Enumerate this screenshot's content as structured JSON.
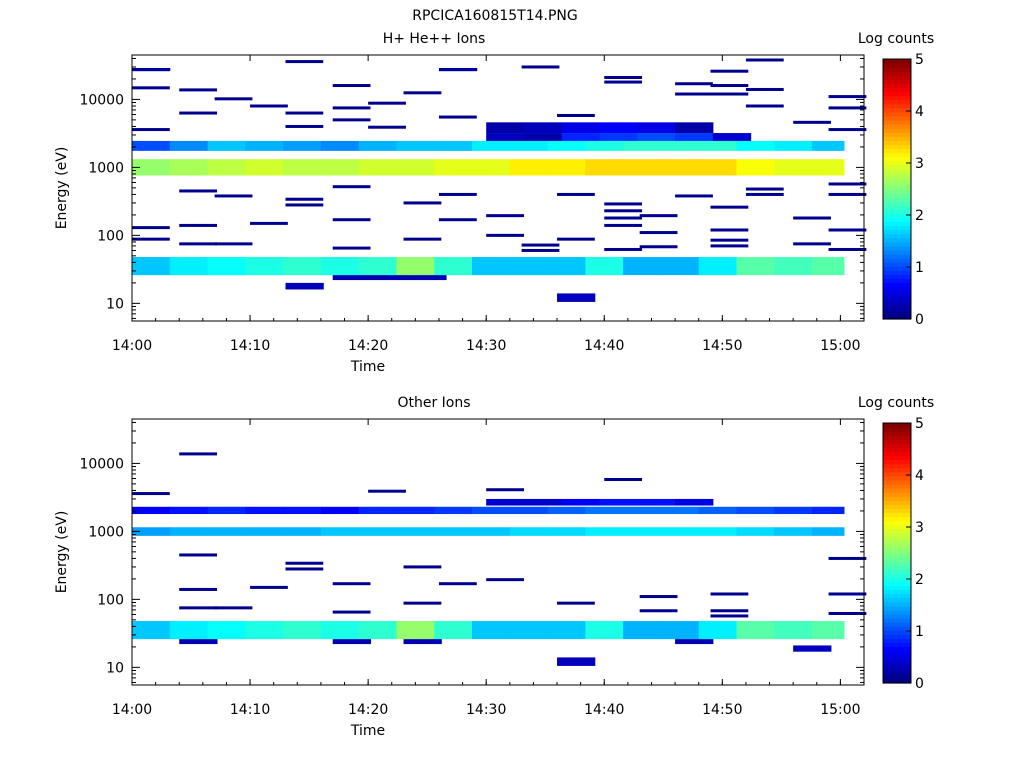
{
  "figure_title": "RPCICA160815T14.PNG",
  "chart_data": [
    {
      "type": "heatmap",
      "title": "H+ He++ Ions",
      "xlabel": "Time",
      "ylabel": "Energy (eV)",
      "x_tick_labels": [
        "14:00",
        "14:10",
        "14:20",
        "14:30",
        "14:40",
        "14:50",
        "15:00"
      ],
      "x_range": [
        "14:00",
        "15:02"
      ],
      "y_tick_labels": [
        "10",
        "100",
        "1000",
        "10000"
      ],
      "y_scale": "log",
      "y_range": [
        5.5,
        45000
      ],
      "colorbar": {
        "label": "Log counts",
        "ticks": [
          "0",
          "1",
          "2",
          "3",
          "4",
          "5"
        ],
        "range": [
          0,
          5
        ],
        "colormap": "jet"
      },
      "time_bin_minutes": 3.2,
      "rows": [
        {
          "energy_range": [
            26,
            48
          ],
          "start": "14:00",
          "values": [
            1.6,
            1.8,
            1.9,
            2.0,
            2.1,
            2.0,
            2.1,
            2.6,
            2.1,
            1.6,
            1.6,
            1.6,
            2.0,
            1.5,
            1.5,
            1.8,
            2.3,
            2.2,
            2.3
          ]
        },
        {
          "energy_range": [
            760,
            1320
          ],
          "start": "14:00",
          "values": [
            2.6,
            2.7,
            2.8,
            2.9,
            2.8,
            2.8,
            2.9,
            2.9,
            3.0,
            3.0,
            3.2,
            3.2,
            3.3,
            3.3,
            3.3,
            3.3,
            3.1,
            3.0,
            3.0
          ]
        },
        {
          "energy_range": [
            1750,
            2450
          ],
          "start": "14:00",
          "values": [
            1.0,
            1.3,
            1.6,
            1.5,
            1.4,
            1.3,
            1.5,
            1.6,
            1.6,
            1.8,
            1.8,
            1.9,
            2.0,
            2.1,
            2.1,
            2.1,
            1.9,
            1.8,
            1.6
          ]
        },
        {
          "energy_range": [
            2450,
            3200
          ],
          "start": "14:30",
          "values": [
            0.3,
            0.2,
            0.8,
            0.9,
            1.0,
            0.9,
            0.4
          ]
        },
        {
          "energy_range": [
            3200,
            4600
          ],
          "start": "14:30",
          "values": [
            0.2,
            0.3,
            0.5,
            0.6,
            0.5,
            0.2
          ]
        },
        {
          "energy_range": [
            16,
            20
          ],
          "start": "14:13",
          "values": [
            0.3
          ]
        },
        {
          "energy_range": [
            22,
            26
          ],
          "start": "14:17",
          "values": [
            0.25,
            0.25,
            0.25
          ]
        },
        {
          "energy_range": [
            10.5,
            14
          ],
          "start": "14:36",
          "values": [
            0.3
          ]
        },
        {
          "energy_range": [
            26000,
            29000
          ],
          "start": "14:00",
          "values": [
            0.15
          ]
        },
        {
          "energy_range": [
            26000,
            29000
          ],
          "start": "14:26",
          "values": [
            0.15
          ]
        }
      ],
      "lines": [
        {
          "energy": 14800,
          "start": "14:00"
        },
        {
          "energy": 3600,
          "start": "14:00"
        },
        {
          "energy": 130,
          "start": "14:00"
        },
        {
          "energy": 88,
          "start": "14:00"
        },
        {
          "energy": 13800,
          "start": "14:04"
        },
        {
          "energy": 6300,
          "start": "14:04"
        },
        {
          "energy": 450,
          "start": "14:04"
        },
        {
          "energy": 140,
          "start": "14:04"
        },
        {
          "energy": 75,
          "start": "14:04"
        },
        {
          "energy": 10200,
          "start": "14:07"
        },
        {
          "energy": 380,
          "start": "14:07"
        },
        {
          "energy": 75,
          "start": "14:07"
        },
        {
          "energy": 8000,
          "start": "14:10"
        },
        {
          "energy": 150,
          "start": "14:10"
        },
        {
          "energy": 36000,
          "start": "14:13"
        },
        {
          "energy": 6300,
          "start": "14:13"
        },
        {
          "energy": 4000,
          "start": "14:13"
        },
        {
          "energy": 340,
          "start": "14:13"
        },
        {
          "energy": 280,
          "start": "14:13"
        },
        {
          "energy": 16000,
          "start": "14:17"
        },
        {
          "energy": 7500,
          "start": "14:17"
        },
        {
          "energy": 5000,
          "start": "14:17"
        },
        {
          "energy": 520,
          "start": "14:17"
        },
        {
          "energy": 170,
          "start": "14:17"
        },
        {
          "energy": 65,
          "start": "14:17"
        },
        {
          "energy": 8800,
          "start": "14:20"
        },
        {
          "energy": 3900,
          "start": "14:20"
        },
        {
          "energy": 12500,
          "start": "14:23"
        },
        {
          "energy": 300,
          "start": "14:23"
        },
        {
          "energy": 88,
          "start": "14:23"
        },
        {
          "energy": 5500,
          "start": "14:26"
        },
        {
          "energy": 400,
          "start": "14:26"
        },
        {
          "energy": 170,
          "start": "14:26"
        },
        {
          "energy": 195,
          "start": "14:30"
        },
        {
          "energy": 100,
          "start": "14:30"
        },
        {
          "energy": 30000,
          "start": "14:33"
        },
        {
          "energy": 72,
          "start": "14:33"
        },
        {
          "energy": 60,
          "start": "14:33"
        },
        {
          "energy": 5800,
          "start": "14:36"
        },
        {
          "energy": 400,
          "start": "14:36"
        },
        {
          "energy": 88,
          "start": "14:36"
        },
        {
          "energy": 21000,
          "start": "14:40"
        },
        {
          "energy": 18000,
          "start": "14:40"
        },
        {
          "energy": 290,
          "start": "14:40"
        },
        {
          "energy": 230,
          "start": "14:40"
        },
        {
          "energy": 180,
          "start": "14:40"
        },
        {
          "energy": 140,
          "start": "14:40"
        },
        {
          "energy": 62,
          "start": "14:40"
        },
        {
          "energy": 195,
          "start": "14:43"
        },
        {
          "energy": 110,
          "start": "14:43"
        },
        {
          "energy": 68,
          "start": "14:43"
        },
        {
          "energy": 17000,
          "start": "14:46"
        },
        {
          "energy": 12000,
          "start": "14:46"
        },
        {
          "energy": 380,
          "start": "14:46"
        },
        {
          "energy": 26000,
          "start": "14:49"
        },
        {
          "energy": 16000,
          "start": "14:49"
        },
        {
          "energy": 12000,
          "start": "14:49"
        },
        {
          "energy": 260,
          "start": "14:49"
        },
        {
          "energy": 120,
          "start": "14:49"
        },
        {
          "energy": 85,
          "start": "14:49"
        },
        {
          "energy": 70,
          "start": "14:49"
        },
        {
          "energy": 38000,
          "start": "14:52"
        },
        {
          "energy": 14000,
          "start": "14:52"
        },
        {
          "energy": 8000,
          "start": "14:52"
        },
        {
          "energy": 480,
          "start": "14:52"
        },
        {
          "energy": 400,
          "start": "14:52"
        },
        {
          "energy": 4600,
          "start": "14:56"
        },
        {
          "energy": 180,
          "start": "14:56"
        },
        {
          "energy": 75,
          "start": "14:56"
        },
        {
          "energy": 11000,
          "start": "14:59"
        },
        {
          "energy": 7500,
          "start": "14:59"
        },
        {
          "energy": 3600,
          "start": "14:59"
        },
        {
          "energy": 570,
          "start": "14:59"
        },
        {
          "energy": 400,
          "start": "14:59"
        },
        {
          "energy": 120,
          "start": "14:59"
        },
        {
          "energy": 62,
          "start": "14:59"
        }
      ]
    },
    {
      "type": "heatmap",
      "title": "Other Ions",
      "xlabel": "Time",
      "ylabel": "Energy (eV)",
      "x_tick_labels": [
        "14:00",
        "14:10",
        "14:20",
        "14:30",
        "14:40",
        "14:50",
        "15:00"
      ],
      "x_range": [
        "14:00",
        "15:02"
      ],
      "y_tick_labels": [
        "10",
        "100",
        "1000",
        "10000"
      ],
      "y_scale": "log",
      "y_range": [
        5.5,
        45000
      ],
      "colorbar": {
        "label": "Log counts",
        "ticks": [
          "0",
          "1",
          "2",
          "3",
          "4",
          "5"
        ],
        "range": [
          0,
          5
        ],
        "colormap": "jet"
      },
      "time_bin_minutes": 3.2,
      "rows": [
        {
          "energy_range": [
            26,
            48
          ],
          "start": "14:00",
          "values": [
            1.6,
            1.8,
            1.9,
            2.0,
            2.1,
            2.0,
            2.1,
            2.6,
            2.1,
            1.6,
            1.6,
            1.6,
            2.0,
            1.5,
            1.5,
            1.8,
            2.3,
            2.2,
            2.3
          ]
        },
        {
          "energy_range": [
            860,
            1150
          ],
          "start": "14:00",
          "values": [
            1.4,
            1.5,
            1.5,
            1.5,
            1.5,
            1.6,
            1.6,
            1.6,
            1.6,
            1.6,
            1.7,
            1.7,
            1.8,
            1.8,
            1.8,
            1.8,
            1.7,
            1.6,
            1.5
          ]
        },
        {
          "energy_range": [
            1800,
            2300
          ],
          "start": "14:00",
          "values": [
            0.6,
            0.7,
            0.8,
            0.7,
            0.7,
            0.6,
            0.8,
            0.8,
            0.9,
            1.0,
            1.0,
            1.1,
            1.2,
            1.2,
            1.2,
            1.1,
            1.0,
            0.9,
            0.8
          ]
        },
        {
          "energy_range": [
            2400,
            3000
          ],
          "start": "14:30",
          "values": [
            0.4,
            0.4,
            0.6,
            0.7,
            0.7,
            0.5
          ]
        },
        {
          "energy_range": [
            22,
            26
          ],
          "start": "14:04",
          "values": [
            0.25
          ]
        },
        {
          "energy_range": [
            22,
            26
          ],
          "start": "14:17",
          "values": [
            0.25
          ]
        },
        {
          "energy_range": [
            22,
            26
          ],
          "start": "14:23",
          "values": [
            0.25
          ]
        },
        {
          "energy_range": [
            22,
            26
          ],
          "start": "14:46",
          "values": [
            0.25
          ]
        },
        {
          "energy_range": [
            17,
            21
          ],
          "start": "14:56",
          "values": [
            0.3
          ]
        },
        {
          "energy_range": [
            10.5,
            14
          ],
          "start": "14:36",
          "values": [
            0.3
          ]
        }
      ],
      "lines": [
        {
          "energy": 3600,
          "start": "14:00"
        },
        {
          "energy": 13800,
          "start": "14:04"
        },
        {
          "energy": 450,
          "start": "14:04"
        },
        {
          "energy": 140,
          "start": "14:04"
        },
        {
          "energy": 75,
          "start": "14:04"
        },
        {
          "energy": 75,
          "start": "14:07"
        },
        {
          "energy": 150,
          "start": "14:10"
        },
        {
          "energy": 340,
          "start": "14:13"
        },
        {
          "energy": 280,
          "start": "14:13"
        },
        {
          "energy": 170,
          "start": "14:17"
        },
        {
          "energy": 65,
          "start": "14:17"
        },
        {
          "energy": 3900,
          "start": "14:20"
        },
        {
          "energy": 300,
          "start": "14:23"
        },
        {
          "energy": 88,
          "start": "14:23"
        },
        {
          "energy": 170,
          "start": "14:26"
        },
        {
          "energy": 4100,
          "start": "14:30"
        },
        {
          "energy": 195,
          "start": "14:30"
        },
        {
          "energy": 88,
          "start": "14:36"
        },
        {
          "energy": 5800,
          "start": "14:40"
        },
        {
          "energy": 110,
          "start": "14:43"
        },
        {
          "energy": 68,
          "start": "14:43"
        },
        {
          "energy": 120,
          "start": "14:49"
        },
        {
          "energy": 68,
          "start": "14:49"
        },
        {
          "energy": 57,
          "start": "14:49"
        },
        {
          "energy": 400,
          "start": "14:59"
        },
        {
          "energy": 120,
          "start": "14:59"
        },
        {
          "energy": 62,
          "start": "14:59"
        }
      ]
    }
  ]
}
